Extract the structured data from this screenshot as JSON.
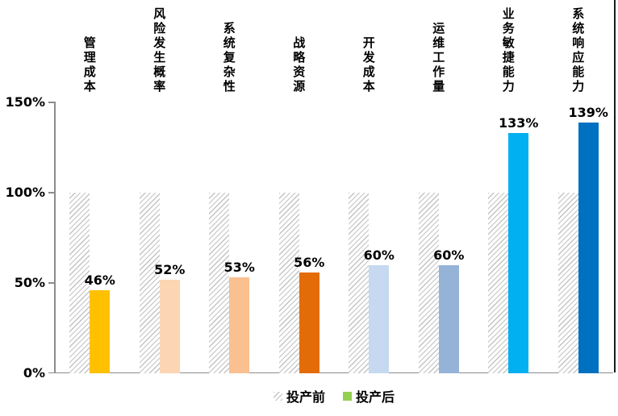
{
  "chart_data": {
    "type": "bar",
    "categories": [
      "管理成本",
      "风险发生概率",
      "系统复杂性",
      "战略资源",
      "开发成本",
      "运维工作量",
      "业务敏捷能力",
      "系统响应能力"
    ],
    "series": [
      {
        "name": "投产前",
        "values": [
          100,
          100,
          100,
          100,
          100,
          100,
          100,
          100
        ],
        "style": "hatched-gray"
      },
      {
        "name": "投产后",
        "values": [
          46,
          52,
          53,
          56,
          60,
          60,
          133,
          139
        ],
        "colors": [
          "#FFC000",
          "#FCD5B4",
          "#FAC090",
          "#E36C09",
          "#C6D9F1",
          "#95B3D7",
          "#00B0F0",
          "#0070C0"
        ]
      }
    ],
    "data_labels": [
      "46%",
      "52%",
      "53%",
      "56%",
      "60%",
      "60%",
      "133%",
      "139%"
    ],
    "title": "",
    "xlabel": "",
    "ylabel": "",
    "y_ticks": [
      "150%",
      "100%",
      "50%",
      "0%"
    ],
    "ylim": [
      0,
      150
    ],
    "grid": false,
    "legend_position": "bottom"
  },
  "legend": {
    "before_label": "投产前",
    "after_label": "投产后",
    "after_swatch_color": "#92D050"
  },
  "colors": {
    "hatch_line": "#c3c3c3",
    "axis": "#8c8c8c",
    "right_border": "#1a1a1a",
    "text": "#000000",
    "background": "#ffffff"
  }
}
